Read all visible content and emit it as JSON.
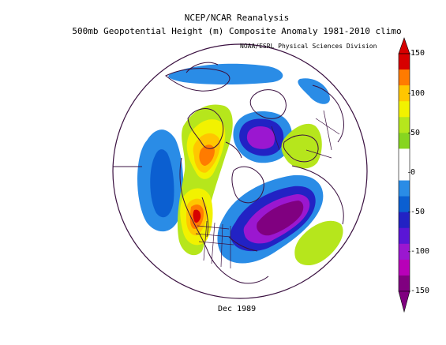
{
  "header": {
    "line1": "NCEP/NCAR Reanalysis",
    "line2": "500mb Geopotential Height (m) Composite Anomaly 1981-2010 climo",
    "credit": "NOAA/ESRL Physical Sciences Division"
  },
  "footer": {
    "date": "Dec 1989"
  },
  "colorbar": {
    "ticks": [
      "150",
      "100",
      "50",
      "0",
      "-50",
      "-100",
      "-150"
    ],
    "colors": [
      "#d70000",
      "#ff7b00",
      "#ffc600",
      "#f2f200",
      "#b6e61c",
      "#87d520",
      "#ffffff",
      "#ffffff",
      "#2a8ce6",
      "#0b5fd1",
      "#2222c4",
      "#5a16d6",
      "#9b17d0",
      "#b800b8",
      "#800080"
    ]
  },
  "map": {
    "projection": "polar-stereographic",
    "features": [
      "coastlines",
      "country-borders",
      "us-state-borders"
    ]
  }
}
